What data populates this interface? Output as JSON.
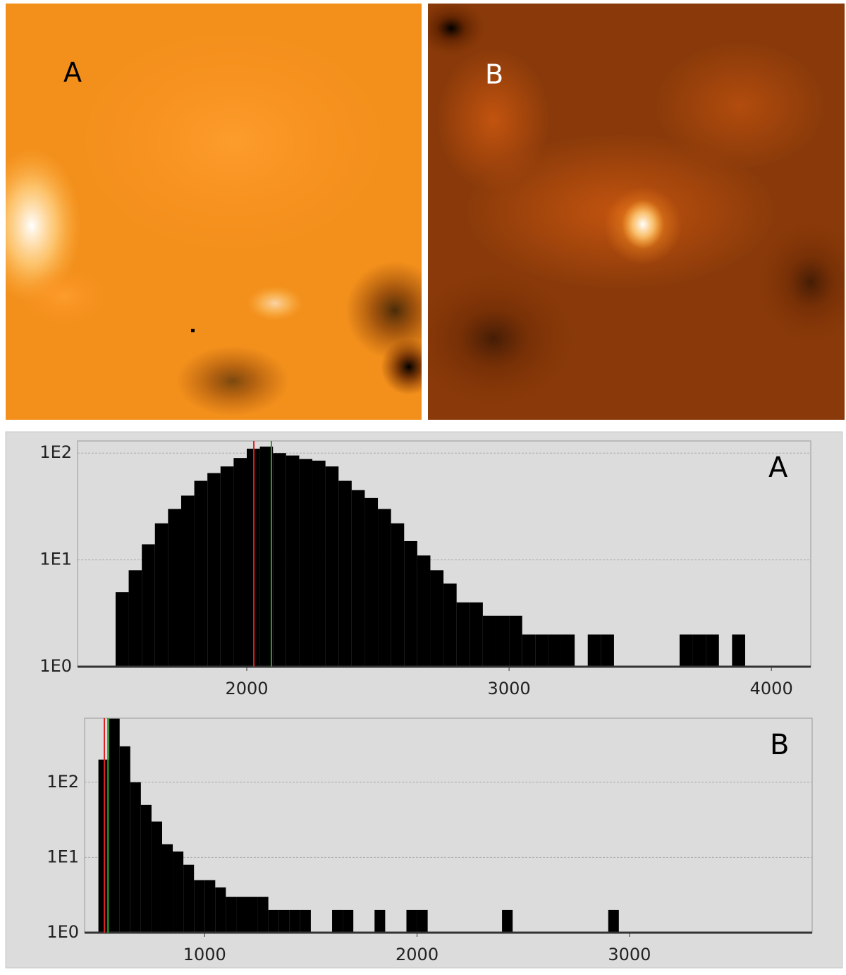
{
  "images": [
    {
      "label": "A"
    },
    {
      "label": "B"
    }
  ],
  "chart_data": [
    {
      "type": "histogram",
      "label": "A",
      "color": "#000000",
      "log_y": true,
      "grid": true,
      "bins": [
        1500,
        1550,
        1600,
        1650,
        1700,
        1750,
        1800,
        1850,
        1900,
        1950,
        2000,
        2050,
        2100,
        2150,
        2200,
        2250,
        2300,
        2350,
        2400,
        2450,
        2500,
        2550,
        2600,
        2650,
        2700,
        2750,
        2800,
        2850,
        2900,
        2950,
        3000,
        3050,
        3100,
        3150,
        3200,
        3250,
        3300,
        3350,
        3400,
        3450,
        3500,
        3550,
        3600,
        3650,
        3700,
        3750,
        3800,
        3850,
        3900,
        3950,
        4000
      ],
      "values": [
        5,
        8,
        14,
        22,
        30,
        40,
        55,
        65,
        75,
        90,
        110,
        115,
        100,
        95,
        88,
        85,
        75,
        55,
        45,
        38,
        30,
        22,
        15,
        11,
        8,
        6,
        4,
        4,
        3,
        3,
        3,
        2,
        2,
        2,
        2,
        1,
        2,
        2,
        1,
        1,
        1,
        1,
        1,
        2,
        2,
        2,
        1,
        2,
        1,
        1
      ],
      "xlim": [
        1355,
        4150
      ],
      "xticks": [
        2000,
        3000,
        4000
      ],
      "ylim": [
        1,
        130
      ],
      "yticks": [
        {
          "value": 1,
          "label": "1E0"
        },
        {
          "value": 10,
          "label": "1E1"
        },
        {
          "value": 100,
          "label": "1E2"
        }
      ],
      "lines": [
        {
          "x": 2027,
          "color": "#e02020"
        },
        {
          "x": 2094,
          "color": "#20a020"
        }
      ]
    },
    {
      "type": "histogram",
      "label": "B",
      "color": "#000000",
      "log_y": true,
      "grid": true,
      "bins": [
        450,
        500,
        550,
        600,
        650,
        700,
        750,
        800,
        850,
        900,
        950,
        1000,
        1050,
        1100,
        1150,
        1200,
        1250,
        1300,
        1350,
        1400,
        1450,
        1500,
        1550,
        1600,
        1650,
        1700,
        1750,
        1800,
        1850,
        1900,
        1950,
        2000,
        2050,
        2100,
        2150,
        2200,
        2250,
        2300,
        2350,
        2400,
        2450,
        2500,
        2550,
        2600,
        2650,
        2700,
        2750,
        2800,
        2850,
        2900,
        2950,
        3000
      ],
      "values": [
        1,
        200,
        700,
        300,
        100,
        50,
        30,
        15,
        12,
        8,
        5,
        5,
        4,
        3,
        3,
        3,
        3,
        2,
        2,
        2,
        2,
        1,
        1,
        2,
        2,
        1,
        1,
        2,
        1,
        1,
        2,
        2,
        1,
        1,
        1,
        1,
        1,
        1,
        1,
        2,
        1,
        1,
        1,
        1,
        1,
        1,
        1,
        1,
        1,
        2,
        1
      ],
      "xlim": [
        435,
        3860
      ],
      "xticks": [
        1000,
        2000,
        3000
      ],
      "ylim": [
        1,
        710
      ],
      "yticks": [
        {
          "value": 1,
          "label": "1E0"
        },
        {
          "value": 10,
          "label": "1E1"
        },
        {
          "value": 100,
          "label": "1E2"
        }
      ],
      "lines": [
        {
          "x": 528,
          "color": "#e02020"
        },
        {
          "x": 545,
          "color": "#20a020"
        }
      ]
    }
  ]
}
